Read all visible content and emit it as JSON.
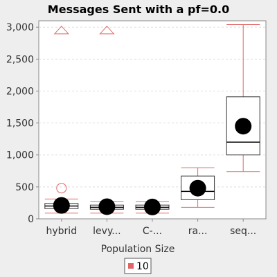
{
  "chart_data": {
    "type": "box",
    "title": "Messages Sent  with a pf=0.0",
    "xlabel": "Population Size",
    "ylabel": "",
    "ylim": [
      0,
      3100
    ],
    "yticks": [
      0,
      500,
      1000,
      1500,
      2000,
      2500,
      3000
    ],
    "ytick_labels": [
      "0",
      "500",
      "1,000",
      "1,500",
      "2,000",
      "2,500",
      "3,000"
    ],
    "grid": true,
    "categories": [
      "hybrid",
      "levy...",
      "C-...",
      "ra...",
      "seq..."
    ],
    "series": [
      {
        "name": "10",
        "color": "#e06666",
        "boxes": [
          {
            "category": "hybrid",
            "min": 90,
            "q1": 160,
            "median": 200,
            "q3": 240,
            "max": 310,
            "mean": 210,
            "outliers": [
              480
            ],
            "far_outliers": [
              2950
            ]
          },
          {
            "category": "levy...",
            "min": 90,
            "q1": 150,
            "median": 180,
            "q3": 215,
            "max": 270,
            "mean": 190,
            "outliers": [],
            "far_outliers": [
              2950
            ]
          },
          {
            "category": "C-...",
            "min": 90,
            "q1": 150,
            "median": 180,
            "q3": 215,
            "max": 270,
            "mean": 185,
            "outliers": [],
            "far_outliers": []
          },
          {
            "category": "ra...",
            "min": 180,
            "q1": 300,
            "median": 430,
            "q3": 670,
            "max": 800,
            "mean": 480,
            "outliers": [],
            "far_outliers": []
          },
          {
            "category": "seq...",
            "min": 740,
            "q1": 1000,
            "median": 1200,
            "q3": 1910,
            "max": 3040,
            "mean": 1450,
            "outliers": [],
            "far_outliers": []
          }
        ]
      }
    ],
    "legend": {
      "position": "bottom",
      "entries": [
        "10"
      ]
    }
  }
}
